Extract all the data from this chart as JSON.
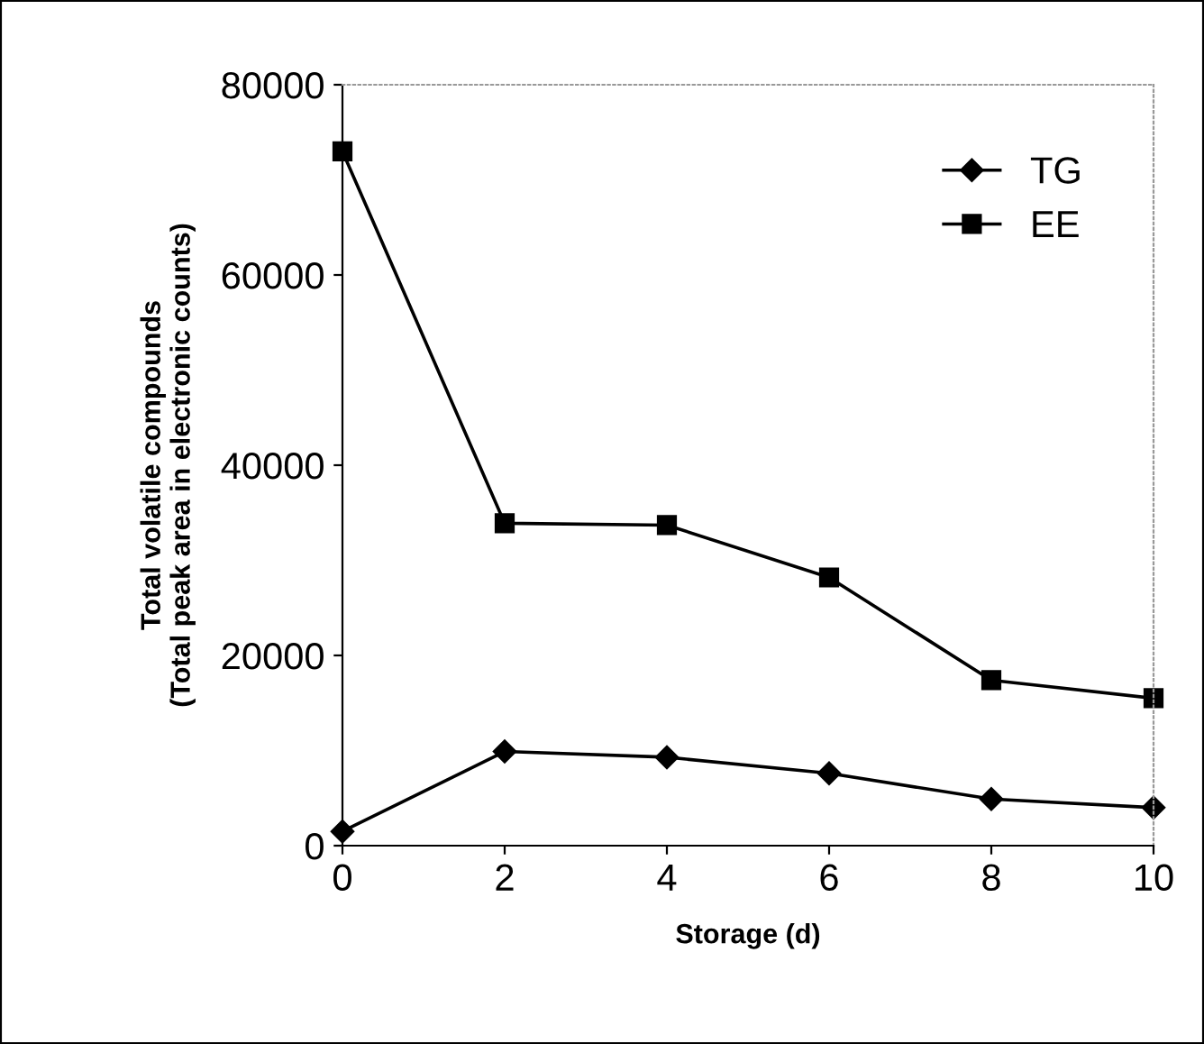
{
  "chart_data": {
    "type": "line",
    "xlabel": "Storage (d)",
    "ylabel": "Total volatile compounds\n(Total peak area in electronic counts)",
    "x": [
      0,
      2,
      4,
      6,
      8,
      10
    ],
    "series": [
      {
        "name": "TG",
        "color": "#000000",
        "marker": "diamond",
        "values": [
          1500,
          9900,
          9300,
          7600,
          4900,
          4000
        ]
      },
      {
        "name": "EE",
        "color": "#000000",
        "marker": "square",
        "values": [
          73000,
          33900,
          33700,
          28200,
          17400,
          15500
        ]
      }
    ],
    "xlim": [
      0,
      10
    ],
    "xticks": [
      0,
      2,
      4,
      6,
      8,
      10
    ],
    "ylim": [
      0,
      80000
    ],
    "yticks": [
      0,
      20000,
      40000,
      60000,
      80000
    ],
    "grid": false,
    "legend": "top right",
    "line_style": "solid"
  }
}
